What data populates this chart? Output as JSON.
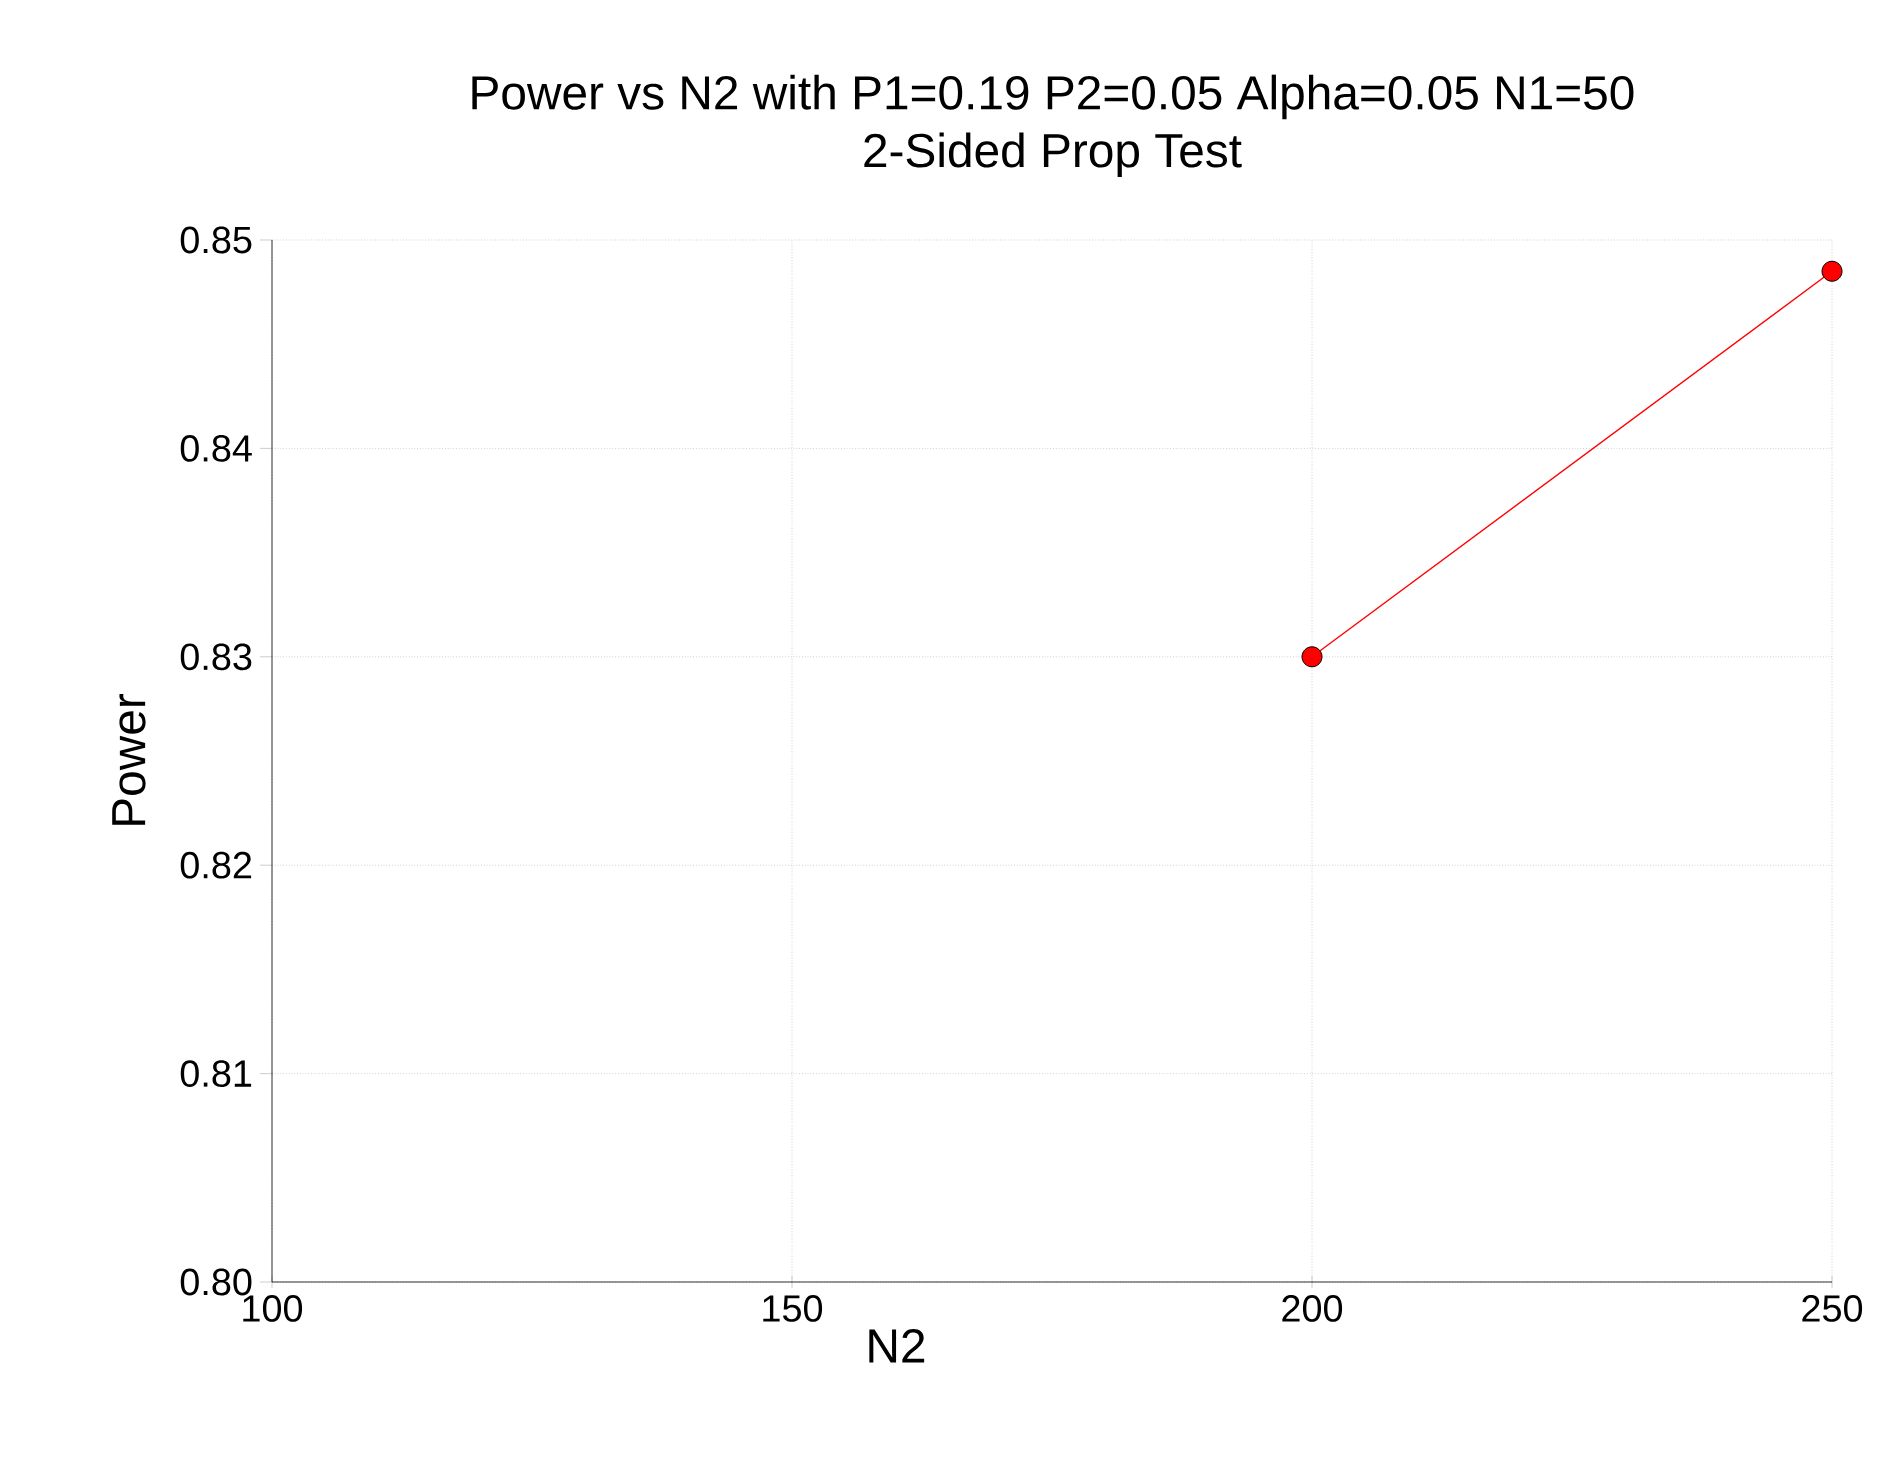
{
  "chart_data": {
    "type": "line",
    "title": "Power vs N2 with P1=0.19 P2=0.05 Alpha=0.05 N1=50",
    "subtitle": "2-Sided Prop Test",
    "xlabel": "N2",
    "ylabel": "Power",
    "x": [
      200,
      250
    ],
    "series": [
      {
        "color": "#ff0000",
        "values": [
          0.83,
          0.8485
        ]
      }
    ],
    "xlim": [
      100,
      250
    ],
    "xticks": [
      100,
      150,
      200,
      250
    ],
    "ylim": [
      0.8,
      0.85
    ],
    "yticks": [
      {
        "value": 0.8,
        "label": "0.80"
      },
      {
        "value": 0.81,
        "label": "0.81"
      },
      {
        "value": 0.82,
        "label": "0.82"
      },
      {
        "value": 0.83,
        "label": "0.83"
      },
      {
        "value": 0.84,
        "label": "0.84"
      },
      {
        "value": 0.85,
        "label": "0.85"
      }
    ],
    "grid": true,
    "marker": "circle",
    "line_style": "solid"
  }
}
